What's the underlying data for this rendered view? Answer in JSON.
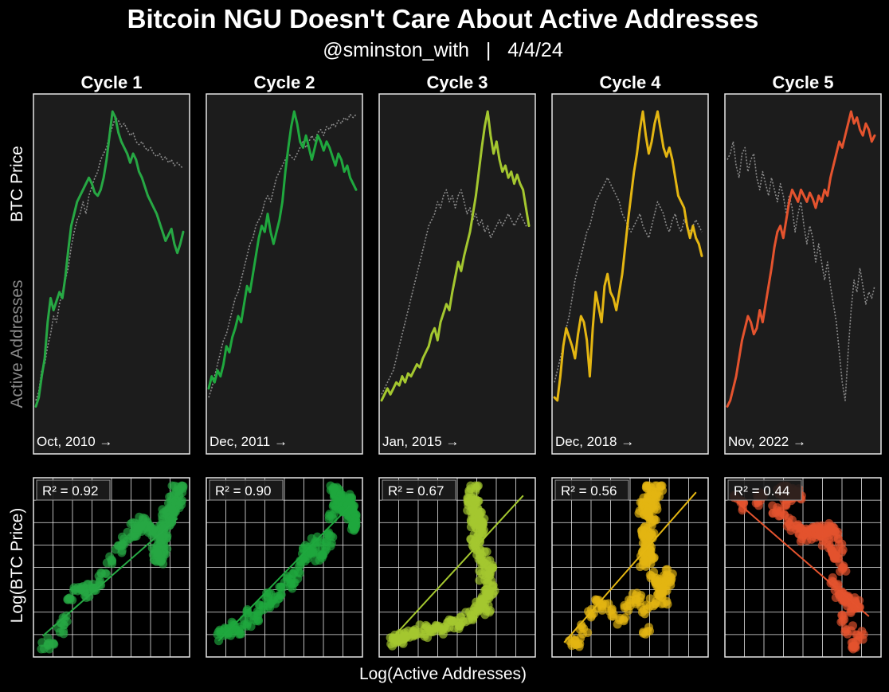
{
  "header": {
    "title": "Bitcoin NGU Doesn't Care About Active Addresses",
    "subtitle": "@sminston_with   |   4/4/24"
  },
  "axes_labels": {
    "top_y_price": "BTC Price",
    "top_y_addresses": "Active Addresses",
    "bottom_y": "Log(BTC Price)",
    "bottom_x": "Log(Active Addresses)"
  },
  "colors": {
    "background": "#000000",
    "panel": "#1c1c1c",
    "frame": "#e6e6e6",
    "grid": "#e6e6e6",
    "addresses_line": "#8a8a8a"
  },
  "chart_data": [
    {
      "type": "line",
      "title": "Cycle 1",
      "start_label": "Oct, 2010 →",
      "color": "#27a844",
      "grid": false,
      "series": [
        {
          "name": "BTC Price",
          "normalized": true,
          "values": [
            0.02,
            0.05,
            0.12,
            0.18,
            0.3,
            0.38,
            0.34,
            0.37,
            0.4,
            0.38,
            0.45,
            0.54,
            0.62,
            0.66,
            0.7,
            0.72,
            0.74,
            0.76,
            0.78,
            0.76,
            0.73,
            0.72,
            0.74,
            0.78,
            0.84,
            0.92,
            1.0,
            0.98,
            0.93,
            0.9,
            0.88,
            0.86,
            0.83,
            0.86,
            0.84,
            0.8,
            0.78,
            0.75,
            0.72,
            0.7,
            0.68,
            0.66,
            0.63,
            0.6,
            0.57,
            0.59,
            0.61,
            0.56,
            0.53,
            0.56,
            0.6
          ]
        },
        {
          "name": "Active Addresses",
          "normalized": true,
          "values": [
            0.04,
            0.07,
            0.14,
            0.16,
            0.22,
            0.26,
            0.32,
            0.3,
            0.36,
            0.4,
            0.44,
            0.48,
            0.55,
            0.6,
            0.64,
            0.66,
            0.7,
            0.66,
            0.72,
            0.75,
            0.78,
            0.8,
            0.84,
            0.86,
            0.88,
            0.92,
            0.95,
            0.98,
            0.97,
            0.95,
            0.96,
            0.94,
            0.92,
            0.93,
            0.9,
            0.89,
            0.9,
            0.88,
            0.87,
            0.88,
            0.86,
            0.85,
            0.86,
            0.84,
            0.85,
            0.83,
            0.84,
            0.82,
            0.83,
            0.82,
            0.81
          ]
        }
      ],
      "scatter": {
        "r2": "R² = 0.92",
        "fit": [
          [
            0.02,
            0.08
          ],
          [
            0.96,
            0.8
          ]
        ]
      }
    },
    {
      "type": "line",
      "title": "Cycle 2",
      "start_label": "Dec, 2011 →",
      "color": "#1fa83e",
      "grid": false,
      "series": [
        {
          "name": "BTC Price",
          "normalized": true,
          "values": [
            0.08,
            0.12,
            0.1,
            0.14,
            0.12,
            0.16,
            0.22,
            0.2,
            0.25,
            0.28,
            0.32,
            0.3,
            0.36,
            0.42,
            0.4,
            0.46,
            0.52,
            0.58,
            0.62,
            0.6,
            0.66,
            0.6,
            0.56,
            0.6,
            0.64,
            0.7,
            0.8,
            0.88,
            0.95,
            1.0,
            0.96,
            0.9,
            0.88,
            0.92,
            0.88,
            0.84,
            0.88,
            0.92,
            0.9,
            0.87,
            0.9,
            0.88,
            0.85,
            0.82,
            0.86,
            0.84,
            0.8,
            0.82,
            0.78,
            0.76,
            0.74
          ]
        },
        {
          "name": "Active Addresses",
          "normalized": true,
          "values": [
            0.05,
            0.08,
            0.12,
            0.16,
            0.2,
            0.24,
            0.26,
            0.3,
            0.34,
            0.38,
            0.4,
            0.44,
            0.48,
            0.52,
            0.56,
            0.58,
            0.62,
            0.64,
            0.66,
            0.7,
            0.72,
            0.7,
            0.74,
            0.78,
            0.8,
            0.82,
            0.84,
            0.86,
            0.85,
            0.84,
            0.86,
            0.88,
            0.9,
            0.88,
            0.9,
            0.92,
            0.9,
            0.93,
            0.94,
            0.92,
            0.95,
            0.94,
            0.96,
            0.95,
            0.97,
            0.96,
            0.98,
            0.97,
            0.99,
            0.98,
            0.99
          ]
        }
      ],
      "scatter": {
        "r2": "R² = 0.90",
        "fit": [
          [
            0.04,
            0.05
          ],
          [
            0.96,
            0.88
          ]
        ]
      }
    },
    {
      "type": "line",
      "title": "Cycle 3",
      "start_label": "Jan, 2015 →",
      "color": "#a4c72f",
      "grid": false,
      "series": [
        {
          "name": "BTC Price",
          "normalized": true,
          "values": [
            0.04,
            0.06,
            0.08,
            0.06,
            0.08,
            0.1,
            0.09,
            0.12,
            0.1,
            0.13,
            0.12,
            0.14,
            0.16,
            0.15,
            0.18,
            0.2,
            0.22,
            0.26,
            0.28,
            0.24,
            0.3,
            0.33,
            0.36,
            0.34,
            0.4,
            0.45,
            0.5,
            0.47,
            0.52,
            0.56,
            0.6,
            0.66,
            0.72,
            0.8,
            0.88,
            0.95,
            1.0,
            0.92,
            0.86,
            0.9,
            0.84,
            0.8,
            0.82,
            0.78,
            0.8,
            0.76,
            0.79,
            0.76,
            0.74,
            0.68,
            0.62
          ]
        },
        {
          "name": "Active Addresses",
          "normalized": true,
          "values": [
            0.06,
            0.08,
            0.1,
            0.12,
            0.14,
            0.18,
            0.22,
            0.26,
            0.3,
            0.34,
            0.38,
            0.42,
            0.46,
            0.5,
            0.54,
            0.58,
            0.62,
            0.64,
            0.66,
            0.7,
            0.68,
            0.72,
            0.74,
            0.7,
            0.72,
            0.68,
            0.72,
            0.74,
            0.7,
            0.66,
            0.68,
            0.64,
            0.66,
            0.62,
            0.64,
            0.6,
            0.62,
            0.58,
            0.6,
            0.62,
            0.64,
            0.62,
            0.64,
            0.66,
            0.64,
            0.62,
            0.64,
            0.66,
            0.64,
            0.62,
            0.63
          ]
        }
      ],
      "scatter": {
        "r2": "R² = 0.67",
        "fit": [
          [
            0.04,
            0.06
          ],
          [
            0.96,
            0.94
          ]
        ]
      }
    },
    {
      "type": "line",
      "title": "Cycle 4",
      "start_label": "Dec, 2018 →",
      "color": "#e4b612",
      "grid": false,
      "series": [
        {
          "name": "BTC Price",
          "normalized": true,
          "values": [
            0.05,
            0.04,
            0.12,
            0.22,
            0.28,
            0.25,
            0.22,
            0.18,
            0.26,
            0.32,
            0.3,
            0.24,
            0.12,
            0.28,
            0.4,
            0.35,
            0.3,
            0.42,
            0.46,
            0.4,
            0.38,
            0.34,
            0.4,
            0.46,
            0.55,
            0.64,
            0.72,
            0.8,
            0.86,
            0.94,
            1.0,
            0.92,
            0.86,
            0.9,
            0.96,
            1.0,
            0.94,
            0.88,
            0.85,
            0.88,
            0.84,
            0.78,
            0.72,
            0.7,
            0.68,
            0.62,
            0.58,
            0.62,
            0.58,
            0.56,
            0.52
          ]
        },
        {
          "name": "Active Addresses",
          "normalized": true,
          "values": [
            0.1,
            0.14,
            0.18,
            0.22,
            0.28,
            0.32,
            0.38,
            0.44,
            0.48,
            0.52,
            0.56,
            0.6,
            0.62,
            0.66,
            0.7,
            0.72,
            0.74,
            0.76,
            0.78,
            0.76,
            0.74,
            0.72,
            0.7,
            0.66,
            0.64,
            0.62,
            0.6,
            0.62,
            0.64,
            0.66,
            0.62,
            0.6,
            0.58,
            0.62,
            0.66,
            0.7,
            0.68,
            0.66,
            0.62,
            0.6,
            0.64,
            0.66,
            0.62,
            0.6,
            0.64,
            0.62,
            0.6,
            0.62,
            0.64,
            0.62,
            0.6
          ]
        }
      ],
      "scatter": {
        "r2": "R² = 0.56",
        "fit": [
          [
            0.04,
            0.04
          ],
          [
            0.96,
            0.96
          ]
        ]
      }
    },
    {
      "type": "line",
      "title": "Cycle 5",
      "start_label": "Nov, 2022 →",
      "color": "#e4532e",
      "grid": false,
      "series": [
        {
          "name": "BTC Price",
          "normalized": true,
          "values": [
            0.02,
            0.04,
            0.08,
            0.12,
            0.18,
            0.24,
            0.28,
            0.32,
            0.3,
            0.26,
            0.28,
            0.34,
            0.3,
            0.36,
            0.42,
            0.48,
            0.55,
            0.6,
            0.62,
            0.58,
            0.64,
            0.7,
            0.74,
            0.72,
            0.7,
            0.74,
            0.72,
            0.7,
            0.73,
            0.71,
            0.68,
            0.72,
            0.7,
            0.74,
            0.72,
            0.78,
            0.82,
            0.86,
            0.9,
            0.88,
            0.92,
            0.96,
            1.0,
            0.96,
            0.98,
            0.94,
            0.92,
            0.96,
            0.94,
            0.9,
            0.92
          ]
        },
        {
          "name": "Active Addresses",
          "normalized": true,
          "values": [
            0.84,
            0.86,
            0.9,
            0.82,
            0.78,
            0.86,
            0.88,
            0.8,
            0.84,
            0.86,
            0.78,
            0.74,
            0.8,
            0.76,
            0.72,
            0.78,
            0.74,
            0.7,
            0.76,
            0.72,
            0.66,
            0.72,
            0.68,
            0.6,
            0.66,
            0.7,
            0.62,
            0.56,
            0.62,
            0.58,
            0.5,
            0.56,
            0.5,
            0.44,
            0.5,
            0.42,
            0.36,
            0.3,
            0.2,
            0.1,
            0.04,
            0.2,
            0.34,
            0.44,
            0.4,
            0.48,
            0.42,
            0.36,
            0.4,
            0.38,
            0.42
          ]
        }
      ],
      "scatter": {
        "r2": "R² = 0.44",
        "fit": [
          [
            0.04,
            0.9
          ],
          [
            0.96,
            0.2
          ]
        ]
      }
    }
  ]
}
